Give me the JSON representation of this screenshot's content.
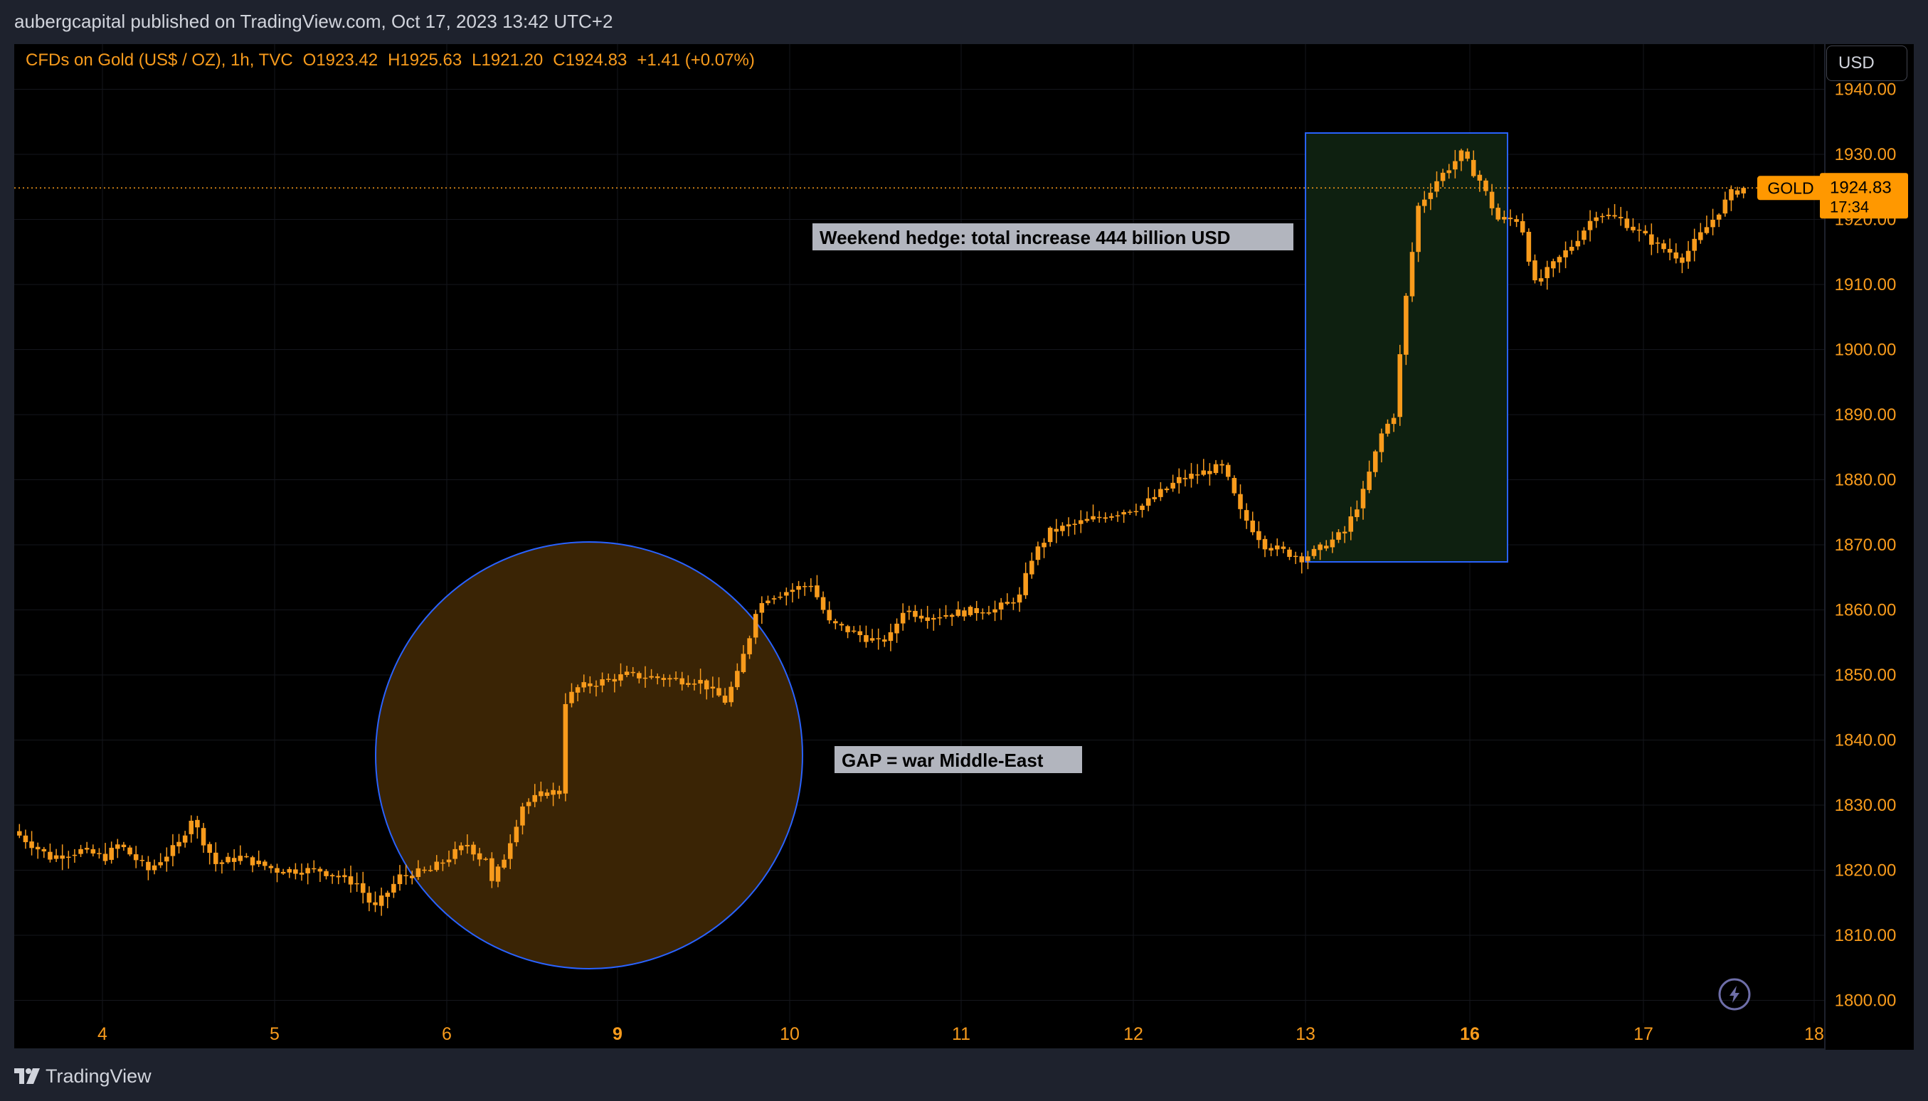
{
  "header": {
    "publish_line": "aubergcapital published on TradingView.com, Oct 17, 2023 13:42 UTC+2"
  },
  "legend": {
    "symbol": "CFDs on Gold (US$ / OZ), 1h, TVC",
    "open": "O1923.42",
    "high": "H1925.63",
    "low": "L1921.20",
    "close": "C1924.83",
    "change": "+1.41 (+0.07%)"
  },
  "currency_button": "USD",
  "footer": {
    "brand": "TradingView"
  },
  "colors": {
    "accent": "#f89b1c",
    "candle": "#f89b1c",
    "price_label_bg": "#ff9800",
    "shape_border": "#2962ff",
    "box_fill": "#0e2010",
    "circle_fill": "#3a2405",
    "background": "#000000"
  },
  "icons": [
    "lightning-icon",
    "tradingview-logo-icon"
  ],
  "chart_data": {
    "type": "candlestick",
    "symbol_label": "GOLD",
    "last_price": "1924.83",
    "countdown": "17:34",
    "ylim": [
      1800,
      1943
    ],
    "y_ticks": [
      "1800.00",
      "1810.00",
      "1820.00",
      "1830.00",
      "1840.00",
      "1850.00",
      "1860.00",
      "1870.00",
      "1880.00",
      "1890.00",
      "1900.00",
      "1910.00",
      "1920.00",
      "1930.00",
      "1940.00"
    ],
    "x_ticks": [
      {
        "label": "4",
        "bold": false
      },
      {
        "label": "5",
        "bold": false
      },
      {
        "label": "6",
        "bold": false
      },
      {
        "label": "9",
        "bold": true
      },
      {
        "label": "10",
        "bold": false
      },
      {
        "label": "11",
        "bold": false
      },
      {
        "label": "12",
        "bold": false
      },
      {
        "label": "13",
        "bold": false
      },
      {
        "label": "16",
        "bold": true
      },
      {
        "label": "17",
        "bold": false
      },
      {
        "label": "18",
        "bold": false
      }
    ],
    "annotations": [
      {
        "text": "Weekend hedge: total increase 444 billion USD"
      },
      {
        "text": "GAP = war Middle-East"
      }
    ],
    "path_knots": [
      [
        0,
        1826
      ],
      [
        30,
        1822
      ],
      [
        55,
        1823
      ],
      [
        75,
        1822
      ],
      [
        86,
        1824
      ],
      [
        110,
        1820
      ],
      [
        135,
        1824
      ],
      [
        145,
        1828
      ],
      [
        165,
        1821
      ],
      [
        185,
        1822
      ],
      [
        215,
        1820
      ],
      [
        250,
        1820
      ],
      [
        280,
        1818
      ],
      [
        294,
        1814
      ],
      [
        315,
        1819
      ],
      [
        340,
        1820
      ],
      [
        370,
        1824
      ],
      [
        380,
        1822
      ],
      [
        385,
        1822
      ],
      [
        390,
        1818
      ],
      [
        400,
        1822
      ],
      [
        415,
        1830
      ],
      [
        435,
        1832
      ],
      [
        445,
        1832
      ],
      [
        450,
        1846
      ],
      [
        460,
        1848
      ],
      [
        500,
        1850
      ],
      [
        560,
        1849
      ],
      [
        580,
        1846
      ],
      [
        590,
        1850
      ],
      [
        600,
        1856
      ],
      [
        605,
        1860
      ],
      [
        615,
        1862
      ],
      [
        650,
        1864
      ],
      [
        665,
        1858
      ],
      [
        705,
        1855
      ],
      [
        715,
        1856
      ],
      [
        725,
        1860
      ],
      [
        745,
        1859
      ],
      [
        790,
        1860
      ],
      [
        800,
        1860
      ],
      [
        820,
        1862
      ],
      [
        830,
        1868
      ],
      [
        845,
        1872
      ],
      [
        880,
        1874
      ],
      [
        920,
        1876
      ],
      [
        950,
        1880
      ],
      [
        985,
        1882
      ],
      [
        992,
        1879
      ],
      [
        1000,
        1875
      ],
      [
        1020,
        1870
      ],
      [
        1050,
        1868
      ],
      [
        1062,
        1869
      ],
      [
        1085,
        1872
      ],
      [
        1100,
        1878
      ],
      [
        1115,
        1887
      ],
      [
        1125,
        1890
      ],
      [
        1135,
        1908
      ],
      [
        1145,
        1922
      ],
      [
        1160,
        1926
      ],
      [
        1180,
        1930
      ],
      [
        1195,
        1926
      ],
      [
        1210,
        1920
      ],
      [
        1228,
        1920
      ],
      [
        1240,
        1910
      ],
      [
        1270,
        1916
      ],
      [
        1290,
        1921
      ],
      [
        1310,
        1920
      ],
      [
        1340,
        1916
      ],
      [
        1360,
        1914
      ],
      [
        1385,
        1920
      ],
      [
        1400,
        1924
      ],
      [
        1410,
        1924.83
      ]
    ]
  }
}
